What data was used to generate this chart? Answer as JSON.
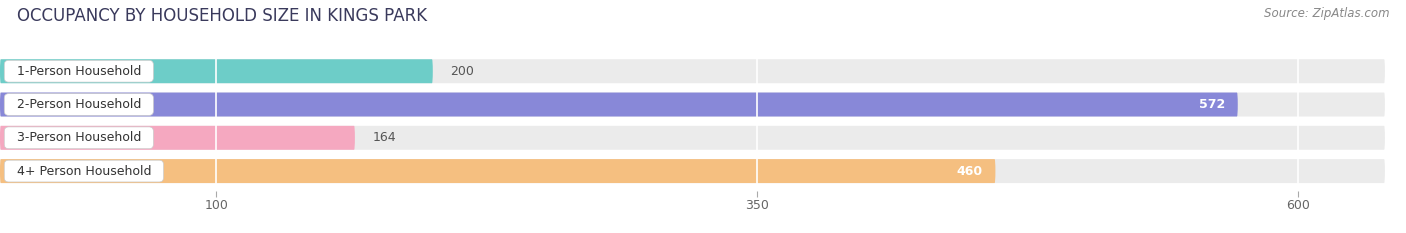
{
  "title": "OCCUPANCY BY HOUSEHOLD SIZE IN KINGS PARK",
  "source": "Source: ZipAtlas.com",
  "categories": [
    "1-Person Household",
    "2-Person Household",
    "3-Person Household",
    "4+ Person Household"
  ],
  "values": [
    200,
    572,
    164,
    460
  ],
  "bar_colors": [
    "#6dcdc8",
    "#8888d8",
    "#f5a8c0",
    "#f5bf80"
  ],
  "x_ticks": [
    100,
    350,
    600
  ],
  "xlim_max": 640,
  "value_label_inside": [
    false,
    true,
    false,
    true
  ],
  "background_color": "#ffffff",
  "bar_background_color": "#ebebeb",
  "title_fontsize": 12,
  "source_fontsize": 8.5,
  "bar_height": 0.72,
  "figsize": [
    14.06,
    2.33
  ],
  "dpi": 100,
  "title_color": "#3a3a5c",
  "source_color": "#888888",
  "label_fontsize": 9,
  "value_fontsize": 9
}
